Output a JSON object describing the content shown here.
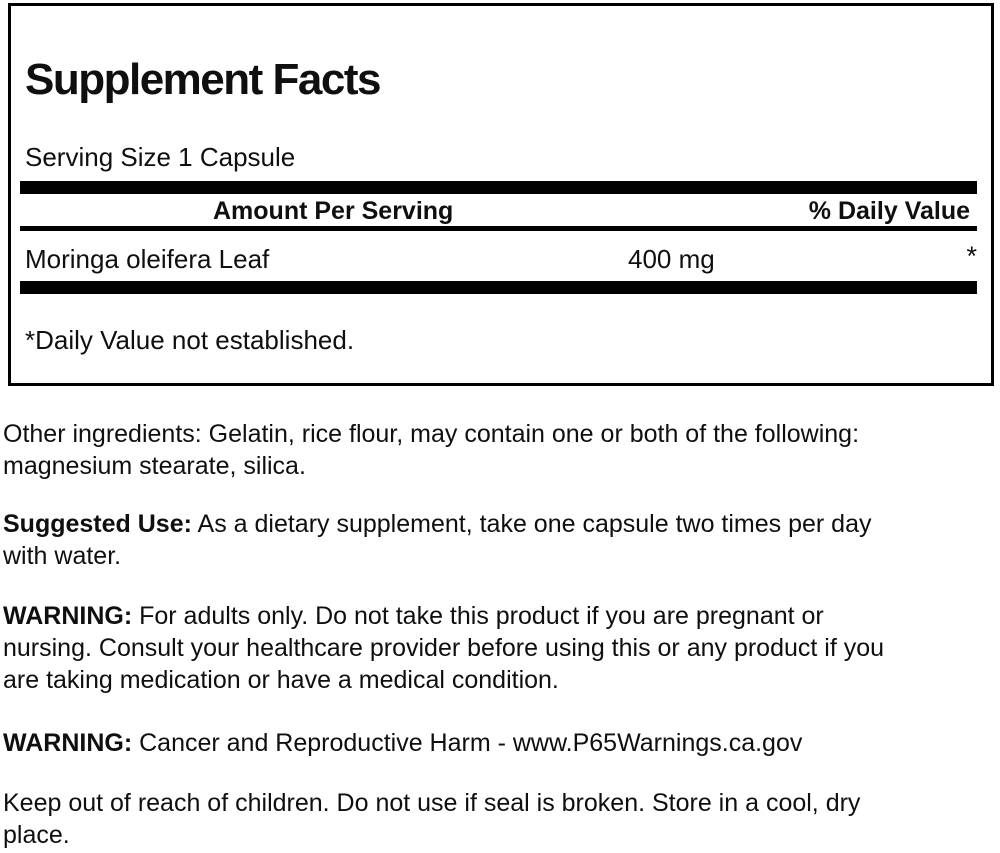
{
  "colors": {
    "text": "#0f0f0f",
    "bar": "#000000",
    "background": "#ffffff"
  },
  "panel": {
    "title": "Supplement Facts",
    "serving_size": "Serving Size 1 Capsule",
    "columns": {
      "amount": "Amount Per Serving",
      "daily_value": "% Daily Value"
    },
    "rows": [
      {
        "name": "Moringa oleifera Leaf",
        "amount": "400 mg",
        "daily_value": "*"
      }
    ],
    "footnote": "*Daily Value not established."
  },
  "sections": {
    "other_ingredients": {
      "lines": [
        "Other ingredients: Gelatin, rice flour, may contain one or both of the following:",
        "magnesium stearate, silica."
      ]
    },
    "suggested_use": {
      "label": "Suggested Use:",
      "line1": "As a dietary supplement, take one capsule two times per day",
      "line2": "with water."
    },
    "warning_use": {
      "label": "WARNING:",
      "line1": "For adults only. Do not take this product if you are pregnant or",
      "line2": "nursing. Consult your healthcare provider before using this or any product if you",
      "line3": "are taking medication or have a medical condition."
    },
    "warning_p65": {
      "label": "WARNING:",
      "line1": "Cancer and Reproductive Harm - www.P65Warnings.ca.gov"
    },
    "storage": {
      "lines": [
        "Keep out of reach of children. Do not use if seal is broken. Store in a cool, dry",
        "place."
      ]
    }
  }
}
